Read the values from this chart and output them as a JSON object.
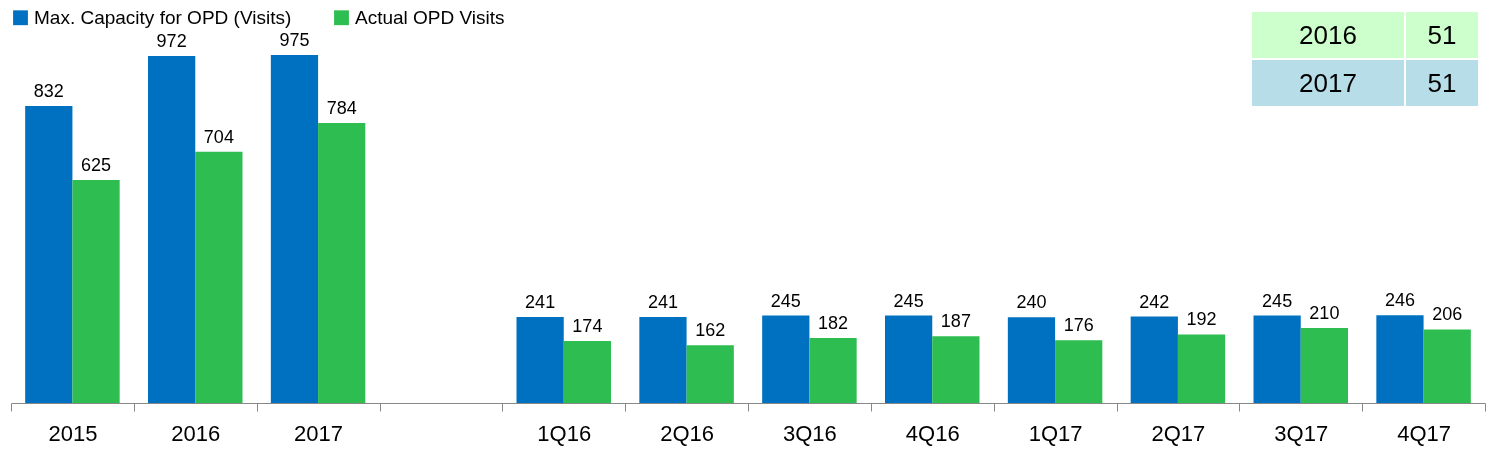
{
  "chart_data": {
    "type": "bar",
    "categories": [
      "2015",
      "2016",
      "2017",
      null,
      "1Q16",
      "2Q16",
      "3Q16",
      "4Q16",
      "1Q17",
      "2Q17",
      "3Q17",
      "4Q17"
    ],
    "series": [
      {
        "name": "Max. Capacity for OPD (Visits)",
        "color": "#0070c0",
        "values": [
          832,
          972,
          975,
          null,
          241,
          241,
          245,
          245,
          240,
          242,
          245,
          246
        ]
      },
      {
        "name": "Actual OPD Visits",
        "color": "#2dbd50",
        "values": [
          625,
          704,
          784,
          null,
          174,
          162,
          182,
          187,
          176,
          192,
          210,
          206
        ]
      }
    ],
    "data_labels": true,
    "legend": "top",
    "grid": false,
    "annotations": [
      "2016",
      "51",
      "2017",
      "51"
    ]
  }
}
